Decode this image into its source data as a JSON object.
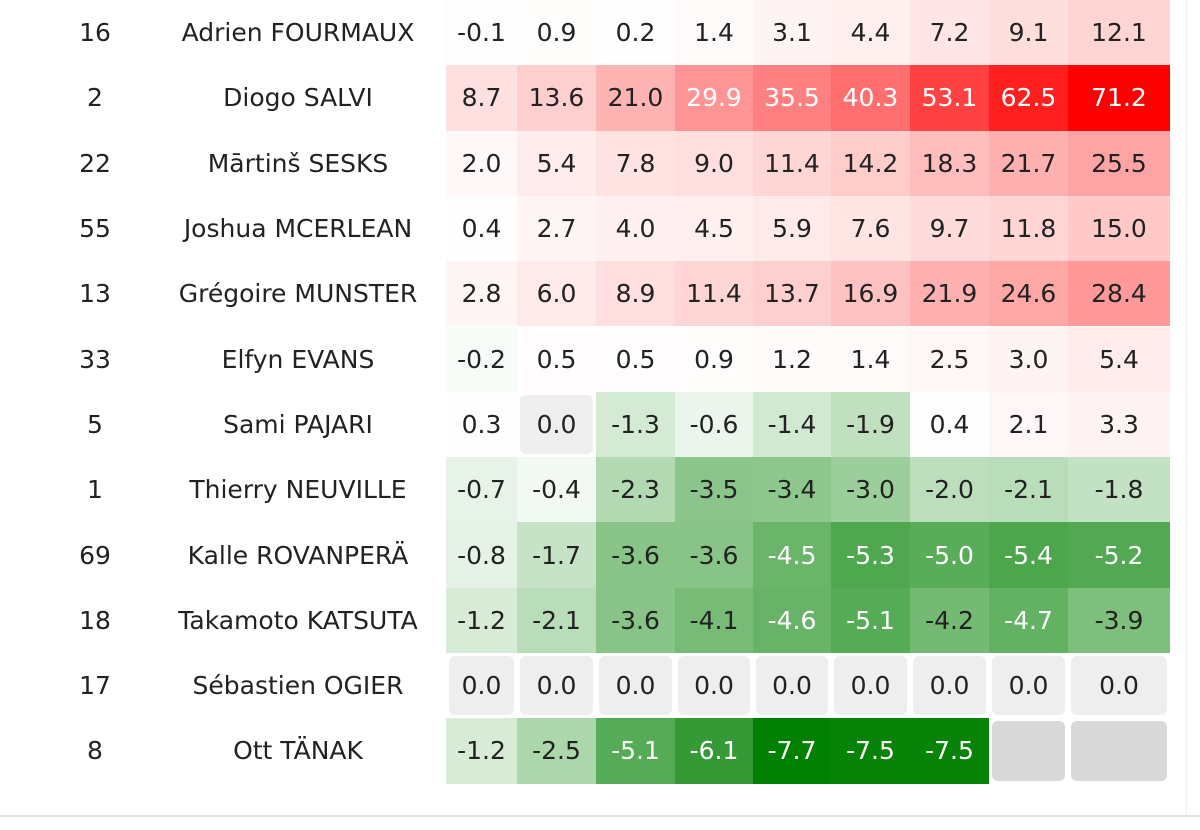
{
  "table": {
    "rows": [
      {
        "number": "16",
        "name": "Adrien FOURMAUX",
        "values": [
          "-0.1",
          "0.9",
          "0.2",
          "1.4",
          "3.1",
          "4.4",
          "7.2",
          "9.1",
          "12.1"
        ]
      },
      {
        "number": "2",
        "name": "Diogo SALVI",
        "values": [
          "8.7",
          "13.6",
          "21.0",
          "29.9",
          "35.5",
          "40.3",
          "53.1",
          "62.5",
          "71.2"
        ]
      },
      {
        "number": "22",
        "name": "Mārtinš SESKS",
        "values": [
          "2.0",
          "5.4",
          "7.8",
          "9.0",
          "11.4",
          "14.2",
          "18.3",
          "21.7",
          "25.5"
        ]
      },
      {
        "number": "55",
        "name": "Joshua MCERLEAN",
        "values": [
          "0.4",
          "2.7",
          "4.0",
          "4.5",
          "5.9",
          "7.6",
          "9.7",
          "11.8",
          "15.0"
        ]
      },
      {
        "number": "13",
        "name": "Grégoire MUNSTER",
        "values": [
          "2.8",
          "6.0",
          "8.9",
          "11.4",
          "13.7",
          "16.9",
          "21.9",
          "24.6",
          "28.4"
        ]
      },
      {
        "number": "33",
        "name": "Elfyn EVANS",
        "values": [
          "-0.2",
          "0.5",
          "0.5",
          "0.9",
          "1.2",
          "1.4",
          "2.5",
          "3.0",
          "5.4"
        ]
      },
      {
        "number": "5",
        "name": "Sami PAJARI",
        "values": [
          "0.3",
          "0.0",
          "-1.3",
          "-0.6",
          "-1.4",
          "-1.9",
          "0.4",
          "2.1",
          "3.3"
        ]
      },
      {
        "number": "1",
        "name": "Thierry NEUVILLE",
        "values": [
          "-0.7",
          "-0.4",
          "-2.3",
          "-3.5",
          "-3.4",
          "-3.0",
          "-2.0",
          "-2.1",
          "-1.8"
        ]
      },
      {
        "number": "69",
        "name": "Kalle ROVANPERÄ",
        "values": [
          "-0.8",
          "-1.7",
          "-3.6",
          "-3.6",
          "-4.5",
          "-5.3",
          "-5.0",
          "-5.4",
          "-5.2"
        ]
      },
      {
        "number": "18",
        "name": "Takamoto KATSUTA",
        "values": [
          "-1.2",
          "-2.1",
          "-3.6",
          "-4.1",
          "-4.6",
          "-5.1",
          "-4.2",
          "-4.7",
          "-3.9"
        ]
      },
      {
        "number": "17",
        "name": "Sébastien OGIER",
        "values": [
          "0.0",
          "0.0",
          "0.0",
          "0.0",
          "0.0",
          "0.0",
          "0.0",
          "0.0",
          "0.0"
        ]
      },
      {
        "number": "8",
        "name": "Ott TÄNAK",
        "values": [
          "-1.2",
          "-2.5",
          "-5.1",
          "-6.1",
          "-7.7",
          "-7.5",
          "-7.5",
          null,
          null
        ]
      }
    ]
  }
}
